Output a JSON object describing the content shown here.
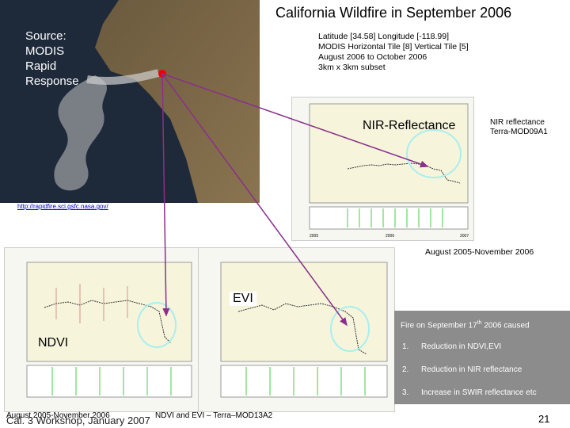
{
  "title": "California Wildfire in September 2006",
  "source": [
    "Source:",
    "MODIS",
    "Rapid",
    "Response"
  ],
  "info": [
    "Latitude [34.58] Longitude [-118.99]",
    "MODIS Horizontal Tile [8] Vertical Tile [5]",
    "August 2006 to October 2006",
    "3km x 3km subset"
  ],
  "nir": {
    "label": "NIR-Reflectance",
    "note": [
      "NIR reflectance",
      "Terra-MOD09A1"
    ],
    "years": [
      "2005",
      "2006",
      "2007"
    ]
  },
  "url": "http://rapidfire.sci.gsfc.nasa.gov/",
  "range": "August 2005-November 2006",
  "evi_label": "EVI",
  "ndvi_label": "NDVI",
  "fire": {
    "head": [
      "Fire on September 17",
      "th",
      " 2006 caused"
    ],
    "items": [
      {
        "num": "1.",
        "text": "Reduction in NDVI,EVI"
      },
      {
        "num": "2.",
        "text": "Reduction in NIR reflectance"
      },
      {
        "num": "3.",
        "text": "Increase in SWIR reflectance etc"
      }
    ]
  },
  "footer": {
    "range": "August 2005-November 2006",
    "workshop": "Cal. 3 Workshop, January 2007",
    "caption": "NDVI and EVI – Terra–MOD13A2",
    "page": "21"
  }
}
